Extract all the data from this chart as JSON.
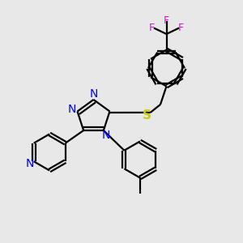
{
  "background_color": "#e8e8e8",
  "bond_color": "#000000",
  "bond_lw": 1.6,
  "figsize": [
    3.0,
    3.0
  ],
  "dpi": 100,
  "xlim": [
    0.0,
    1.0
  ],
  "ylim": [
    0.0,
    1.0
  ],
  "S_color": "#cccc00",
  "N_color": "#0000ff",
  "F_color": "#ee00ee"
}
